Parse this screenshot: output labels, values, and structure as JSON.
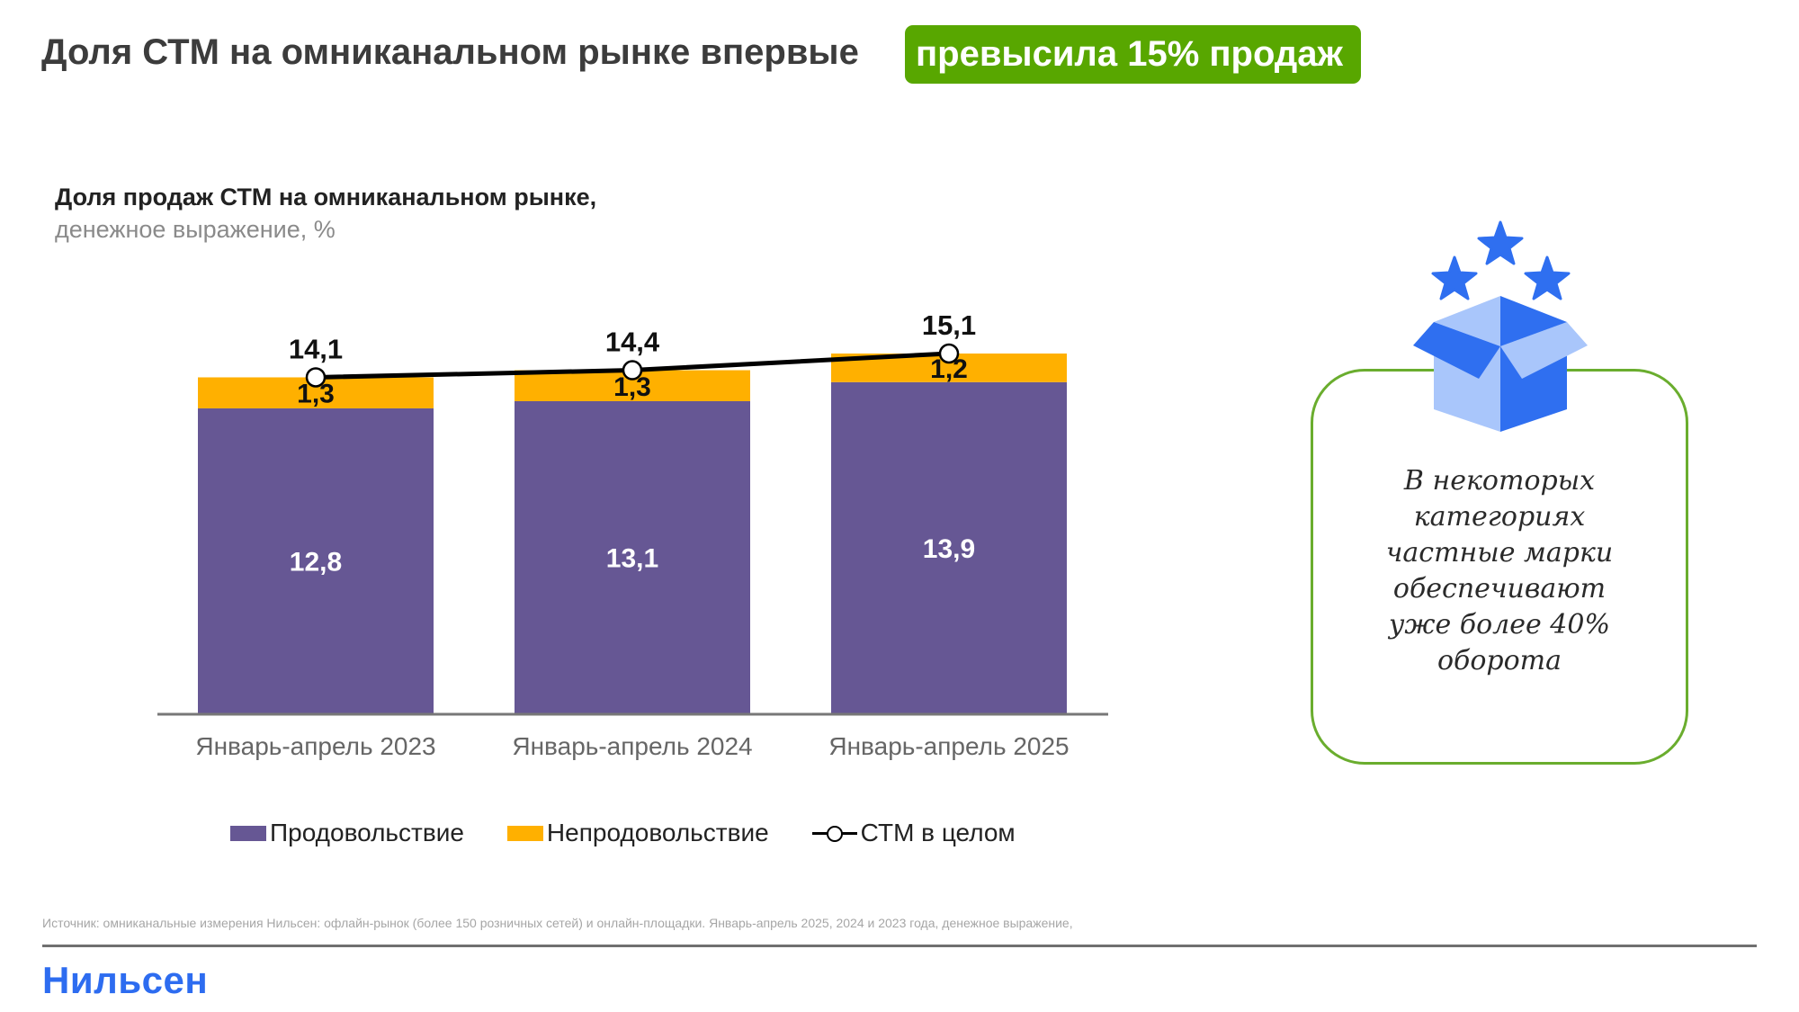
{
  "header": {
    "title": "Доля СТМ на омниканальном рынке впервые",
    "highlight": "превысила 15% продаж",
    "highlight_color": "#58a700"
  },
  "chart_header": {
    "title": "Доля продаж СТМ на омниканальном рынке,",
    "subtitle": "денежное выражение, %"
  },
  "chart_data": {
    "type": "bar",
    "stacked": true,
    "title": "Доля продаж СТМ на омниканальном рынке, денежное выражение, %",
    "categories": [
      "Январь-апрель 2023",
      "Январь-апрель 2024",
      "Январь-апрель 2025"
    ],
    "series": [
      {
        "name": "Продовольствие",
        "type": "bar",
        "color": "#665794",
        "values": [
          12.8,
          13.1,
          13.9
        ],
        "labels": [
          "12,8",
          "13,1",
          "13,9"
        ]
      },
      {
        "name": "Непродовольствие",
        "type": "bar",
        "color": "#ffb000",
        "values": [
          1.3,
          1.3,
          1.2
        ],
        "labels": [
          "1,3",
          "1,3",
          "1,2"
        ]
      },
      {
        "name": "СТМ в целом",
        "type": "line",
        "color": "#000000",
        "values": [
          14.1,
          14.4,
          15.1
        ],
        "labels": [
          "14,1",
          "14,4",
          "15,1"
        ]
      }
    ],
    "xlabel": "",
    "ylabel": "",
    "ylim": [
      0,
      15.1
    ],
    "grid": false,
    "legend_position": "bottom"
  },
  "legend": {
    "items": [
      {
        "label": "Продовольствие",
        "color": "#665794",
        "kind": "bar"
      },
      {
        "label": "Непродовольствие",
        "color": "#ffb000",
        "kind": "bar"
      },
      {
        "label": "СТМ в целом",
        "color": "#000000",
        "kind": "line"
      }
    ]
  },
  "callout": {
    "icon": "open-box-with-stars-icon",
    "lines": [
      "В некоторых",
      "категориях",
      "частные марки",
      "обеспечивают",
      "уже более 40%",
      "оборота"
    ],
    "border_color": "#6aad2e"
  },
  "footer": {
    "source": "Источник: омниканальные измерения Нильсен: офлайн-рынок (более 150 розничных сетей) и онлайн-площадки. Январь-апрель 2025, 2024 и 2023 года, денежное выражение,",
    "logo": "Нильсен",
    "logo_color": "#2d6cf0"
  }
}
